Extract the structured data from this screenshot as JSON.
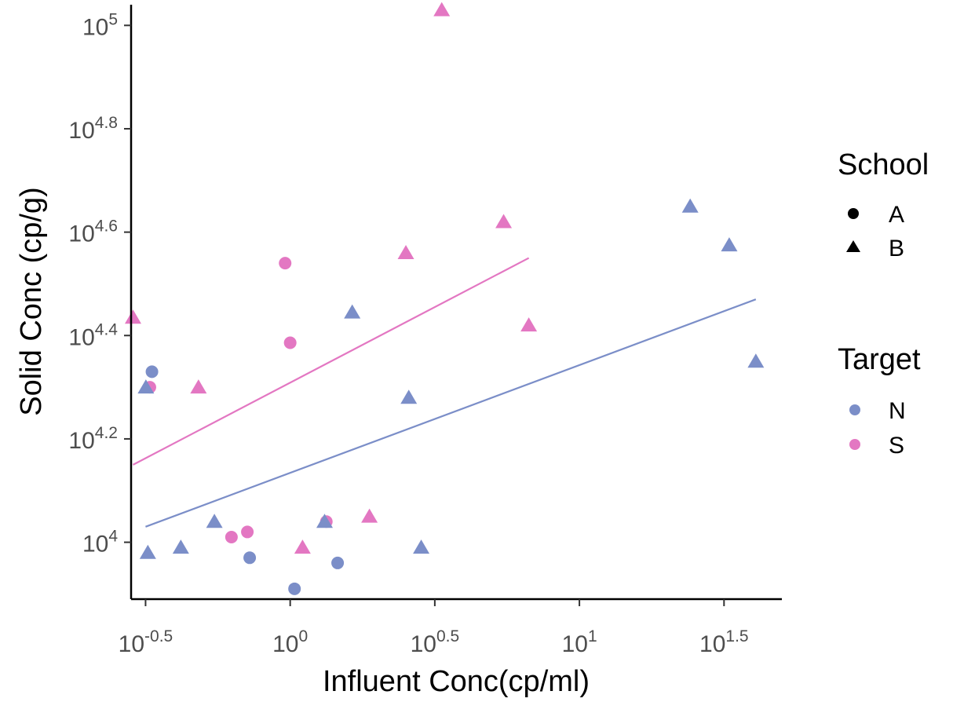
{
  "chart_data": {
    "type": "scatter",
    "xlabel": "Influent Conc(cp/ml)",
    "ylabel": "Solid Conc (cp/g)",
    "x_scale": "log10",
    "y_scale": "log10",
    "xlim": [
      0.2818,
      50.1187
    ],
    "ylim": [
      7762,
      109648
    ],
    "x_ticks": [
      {
        "value": 0.3162,
        "base": "10",
        "exp": "-0.5"
      },
      {
        "value": 1,
        "base": "10",
        "exp": "0"
      },
      {
        "value": 3.1623,
        "base": "10",
        "exp": "0.5"
      },
      {
        "value": 10,
        "base": "10",
        "exp": "1"
      },
      {
        "value": 31.623,
        "base": "10",
        "exp": "1.5"
      }
    ],
    "y_ticks": [
      {
        "value": 10000,
        "base": "10",
        "exp": "4"
      },
      {
        "value": 15849,
        "base": "10",
        "exp": "4.2"
      },
      {
        "value": 25119,
        "base": "10",
        "exp": "4.4"
      },
      {
        "value": 39811,
        "base": "10",
        "exp": "4.6"
      },
      {
        "value": 63096,
        "base": "10",
        "exp": "4.8"
      },
      {
        "value": 100000,
        "base": "10",
        "exp": "5"
      }
    ],
    "grid": false,
    "legend_position": "right",
    "legends": [
      {
        "title": "School",
        "entries": [
          {
            "label": "A",
            "shape": "circle"
          },
          {
            "label": "B",
            "shape": "triangle"
          }
        ]
      },
      {
        "title": "Target",
        "entries": [
          {
            "label": "N",
            "color": "#7B8EC8"
          },
          {
            "label": "S",
            "color": "#E377C2"
          }
        ]
      }
    ],
    "colors": {
      "N": "#7B8EC8",
      "S": "#E377C2"
    },
    "series": [
      {
        "school": "A",
        "target": "N",
        "points": [
          {
            "x": 0.3327,
            "y": 21380
          },
          {
            "x": 0.7244,
            "y": 9333
          },
          {
            "x": 1.0351,
            "y": 8128
          },
          {
            "x": 1.4588,
            "y": 9120
          }
        ]
      },
      {
        "school": "A",
        "target": "S",
        "points": [
          {
            "x": 0.3273,
            "y": 19953
          },
          {
            "x": 0.6266,
            "y": 10233
          },
          {
            "x": 0.711,
            "y": 10471
          },
          {
            "x": 0.9606,
            "y": 34674
          },
          {
            "x": 1.0,
            "y": 24322
          },
          {
            "x": 1.3335,
            "y": 10965
          }
        ]
      },
      {
        "school": "B",
        "target": "N",
        "points": [
          {
            "x": 0.317,
            "y": 19953
          },
          {
            "x": 0.322,
            "y": 9550
          },
          {
            "x": 0.4187,
            "y": 9772
          },
          {
            "x": 0.547,
            "y": 10965
          },
          {
            "x": 1.3152,
            "y": 10965
          },
          {
            "x": 1.6387,
            "y": 27861
          },
          {
            "x": 2.5704,
            "y": 19055
          },
          {
            "x": 2.8379,
            "y": 9772
          },
          {
            "x": 24.1546,
            "y": 44668
          },
          {
            "x": 32.961,
            "y": 37584
          },
          {
            "x": 40.738,
            "y": 22387
          }
        ]
      },
      {
        "school": "B",
        "target": "S",
        "points": [
          {
            "x": 0.2862,
            "y": 27227
          },
          {
            "x": 0.4819,
            "y": 19953
          },
          {
            "x": 1.1033,
            "y": 9772
          },
          {
            "x": 1.8793,
            "y": 11220
          },
          {
            "x": 2.5119,
            "y": 36308
          },
          {
            "x": 3.342,
            "y": 107152
          },
          {
            "x": 5.4701,
            "y": 41687
          },
          {
            "x": 6.6834,
            "y": 26303
          }
        ]
      }
    ],
    "trend_lines": [
      {
        "target": "N",
        "x": [
          0.3162,
          40.738
        ],
        "y": [
          10715,
          29512
        ]
      },
      {
        "target": "S",
        "x": [
          0.2862,
          6.6834
        ],
        "y": [
          14125,
          35481
        ]
      }
    ]
  }
}
